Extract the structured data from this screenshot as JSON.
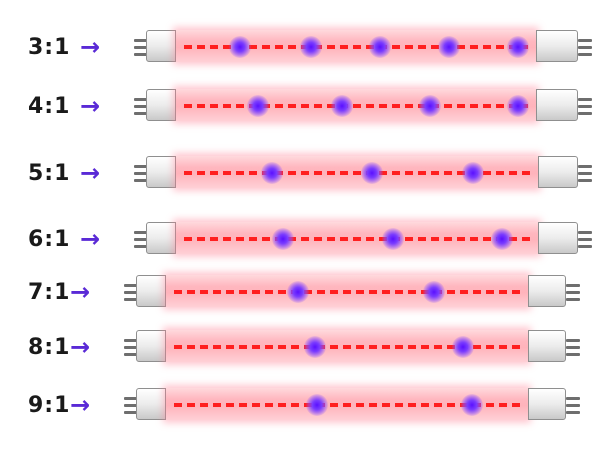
{
  "arrow_glyph": "→",
  "rows": [
    {
      "ratio": "3:1",
      "blue_leds": 5
    },
    {
      "ratio": "4:1",
      "blue_leds": 4
    },
    {
      "ratio": "5:1",
      "blue_leds": 3
    },
    {
      "ratio": "6:1",
      "blue_leds": 3
    },
    {
      "ratio": "7:1",
      "blue_leds": 2
    },
    {
      "ratio": "8:1",
      "blue_leds": 2
    },
    {
      "ratio": "9:1",
      "blue_leds": 2
    }
  ],
  "colors": {
    "red_led": "#ff1f1f",
    "blue_led": "#5a10ff",
    "arrow": "#5a2ad6",
    "tube_glow": "#ffb7bf",
    "label": "#1a1a1a"
  }
}
